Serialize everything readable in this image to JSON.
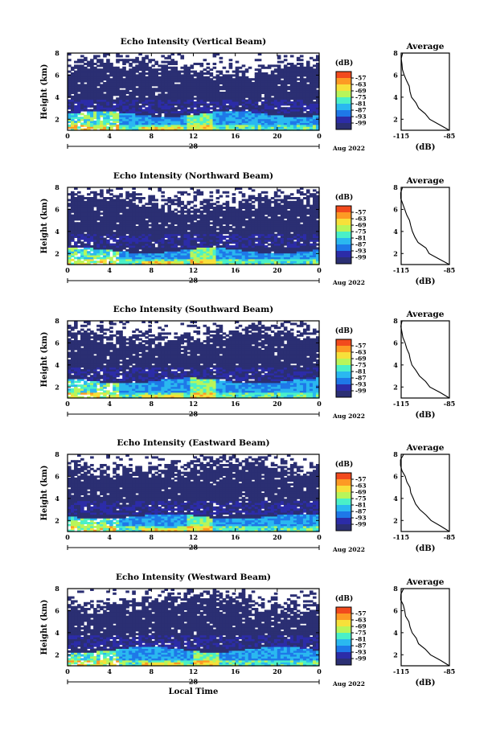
{
  "chart_data": {
    "type": "heatmap",
    "colorbar": {
      "unit": "(dB)",
      "ticks": [
        "-57",
        "-63",
        "-69",
        "-75",
        "-81",
        "-87",
        "-93",
        "-99"
      ],
      "values": [
        -57,
        -63,
        -69,
        -75,
        -81,
        -87,
        -93,
        -99
      ],
      "colors": [
        "#f24a1d",
        "#fd9a24",
        "#f7e03a",
        "#b8f55a",
        "#4af0c8",
        "#2ab8f0",
        "#1e78e8",
        "#2c2ca8",
        "#2b2f73"
      ]
    },
    "x_axis": {
      "ticks": [
        "0",
        "4",
        "8",
        "12",
        "16",
        "20",
        "0"
      ],
      "hours": [
        0,
        4,
        8,
        12,
        16,
        20,
        24
      ],
      "date_label": "28",
      "month_label": "Aug 2022",
      "xlabel": "Local Time"
    },
    "y_axis": {
      "ylabel": "Height (km)",
      "ticks": [
        "2",
        "4",
        "6",
        "8"
      ],
      "ylim": [
        1,
        8
      ]
    },
    "panels": [
      {
        "title": "Echo Intensity (Vertical Beam)",
        "bottom_layer_top_km": 2.5,
        "hot_spot_hour": 12.5
      },
      {
        "title": "Echo Intensity (Northward Beam)",
        "bottom_layer_top_km": 2.3,
        "hot_spot_hour": 12.8
      },
      {
        "title": "Echo Intensity (Southward Beam)",
        "bottom_layer_top_km": 2.6,
        "hot_spot_hour": 13.0
      },
      {
        "title": "Echo Intensity (Eastward Beam)",
        "bottom_layer_top_km": 2.4,
        "hot_spot_hour": 12.6
      },
      {
        "title": "Echo Intensity (Westward Beam)",
        "bottom_layer_top_km": 2.5,
        "hot_spot_hour": 13.2
      }
    ],
    "profile": {
      "title": "Average",
      "xlabel": "(dB)",
      "x_ticks": [
        "-115",
        "-85"
      ],
      "xlim": [
        -115,
        -85
      ],
      "y_ticks": [
        "2",
        "4",
        "6",
        "8"
      ],
      "ylim": [
        1,
        8
      ],
      "heights_km": [
        1.0,
        1.5,
        2.0,
        2.5,
        3.0,
        3.5,
        4.0,
        4.5,
        5.0,
        5.5,
        6.0,
        6.5,
        7.0,
        7.5,
        8.0
      ],
      "values_db": [
        -85,
        -91,
        -97,
        -100,
        -104,
        -106,
        -108,
        -109,
        -110,
        -112,
        -113,
        -114,
        -115,
        -115,
        -114
      ]
    }
  }
}
